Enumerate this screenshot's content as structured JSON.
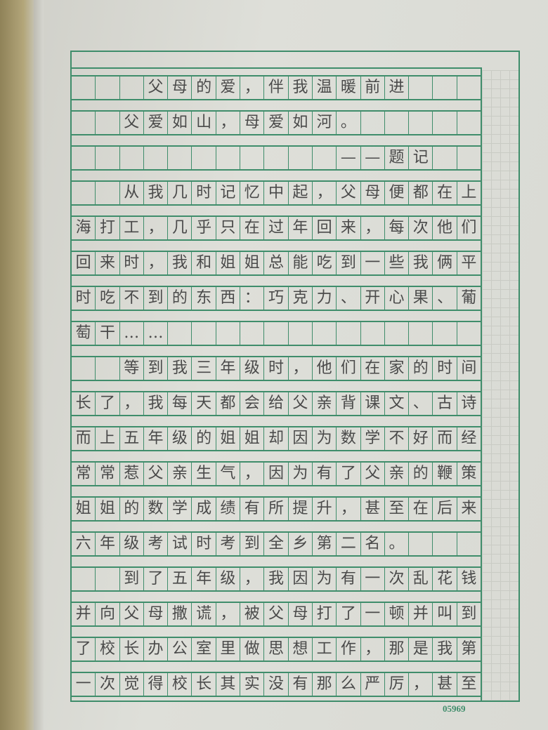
{
  "essay": {
    "rows": [
      [
        "",
        "",
        "",
        "父",
        "母",
        "的",
        "爱",
        "，",
        "伴",
        "我",
        "温",
        "暖",
        "前",
        "进",
        "",
        "",
        ""
      ],
      [
        "",
        "",
        "父",
        "爱",
        "如",
        "山",
        "，",
        "母",
        "爱",
        "如",
        "河",
        "。",
        "",
        "",
        "",
        "",
        ""
      ],
      [
        "",
        "",
        "",
        "",
        "",
        "",
        "",
        "",
        "",
        "",
        "",
        "—",
        "—",
        "题",
        "记",
        "",
        ""
      ],
      [
        "",
        "",
        "从",
        "我",
        "几",
        "时",
        "记",
        "忆",
        "中",
        "起",
        "，",
        "父",
        "母",
        "便",
        "都",
        "在",
        "上"
      ],
      [
        "海",
        "打",
        "工",
        "，",
        "几",
        "乎",
        "只",
        "在",
        "过",
        "年",
        "回",
        "来",
        "，",
        "每",
        "次",
        "他",
        "们"
      ],
      [
        "回",
        "来",
        "时",
        "，",
        "我",
        "和",
        "姐",
        "姐",
        "总",
        "能",
        "吃",
        "到",
        "一",
        "些",
        "我",
        "俩",
        "平"
      ],
      [
        "时",
        "吃",
        "不",
        "到",
        "的",
        "东",
        "西",
        "：",
        "巧",
        "克",
        "力",
        "、",
        "开",
        "心",
        "果",
        "、",
        "葡"
      ],
      [
        "萄",
        "干",
        "…",
        "…",
        "",
        "",
        "",
        "",
        "",
        "",
        "",
        "",
        "",
        "",
        "",
        "",
        ""
      ],
      [
        "",
        "",
        "等",
        "到",
        "我",
        "三",
        "年",
        "级",
        "时",
        "，",
        "他",
        "们",
        "在",
        "家",
        "的",
        "时",
        "间"
      ],
      [
        "长",
        "了",
        "，",
        "我",
        "每",
        "天",
        "都",
        "会",
        "给",
        "父",
        "亲",
        "背",
        "课",
        "文",
        "、",
        "古",
        "诗"
      ],
      [
        "而",
        "上",
        "五",
        "年",
        "级",
        "的",
        "姐",
        "姐",
        "却",
        "因",
        "为",
        "数",
        "学",
        "不",
        "好",
        "而",
        "经"
      ],
      [
        "常",
        "常",
        "惹",
        "父",
        "亲",
        "生",
        "气",
        "，",
        "因",
        "为",
        "有",
        "了",
        "父",
        "亲",
        "的",
        "鞭",
        "策"
      ],
      [
        "姐",
        "姐",
        "的",
        "数",
        "学",
        "成",
        "绩",
        "有",
        "所",
        "提",
        "升",
        "，",
        "甚",
        "至",
        "在",
        "后",
        "来"
      ],
      [
        "六",
        "年",
        "级",
        "考",
        "试",
        "时",
        "考",
        "到",
        "全",
        "乡",
        "第",
        "二",
        "名",
        "。",
        "",
        "",
        ""
      ],
      [
        "",
        "",
        "到",
        "了",
        "五",
        "年",
        "级",
        "，",
        "我",
        "因",
        "为",
        "有",
        "一",
        "次",
        "乱",
        "花",
        "钱"
      ],
      [
        "并",
        "向",
        "父",
        "母",
        "撒",
        "谎",
        "，",
        "被",
        "父",
        "母",
        "打",
        "了",
        "一",
        "顿",
        "并",
        "叫",
        "到"
      ],
      [
        "了",
        "校",
        "长",
        "办",
        "公",
        "室",
        "里",
        "做",
        "思",
        "想",
        "工",
        "作",
        "，",
        "那",
        "是",
        "我",
        "第"
      ],
      [
        "一",
        "次",
        "觉",
        "得",
        "校",
        "长",
        "其",
        "实",
        "没",
        "有",
        "那",
        "么",
        "严",
        "厉",
        "，",
        "甚",
        "至"
      ]
    ]
  },
  "footer": {
    "serial": "05969"
  },
  "colors": {
    "grid_line": "#3f8d6b",
    "ink": "#4a4a4a",
    "paper": "#dadbd5"
  }
}
